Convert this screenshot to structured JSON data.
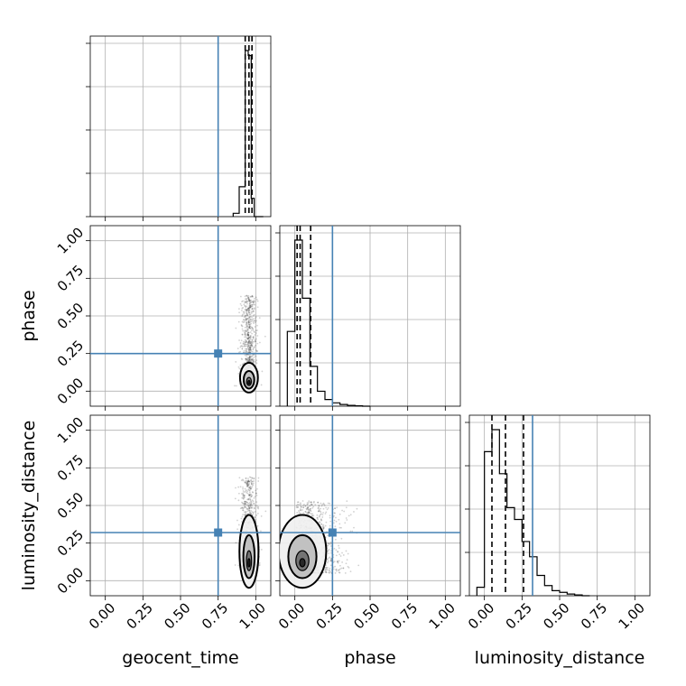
{
  "chart_data": {
    "type": "corner",
    "parameters": [
      "geocent_time",
      "phase",
      "luminosity_distance"
    ],
    "axis_range": [
      -0.1,
      1.1
    ],
    "ticks": [
      0.0,
      0.25,
      0.5,
      0.75,
      1.0
    ],
    "tick_labels": [
      "0.00",
      "0.25",
      "0.50",
      "0.75",
      "1.00"
    ],
    "grid": true,
    "truths": {
      "geocent_time": 0.75,
      "phase": 0.25,
      "luminosity_distance": 0.32
    },
    "truth_color": "#4682b4",
    "hist_color": "#000000",
    "marginals": {
      "geocent_time": {
        "bin_edges": [
          0.85,
          0.89,
          0.93,
          0.95,
          0.97,
          0.99,
          1.05
        ],
        "heights": [
          0.02,
          0.18,
          1.0,
          0.97,
          0.11,
          0.0
        ],
        "quantiles": [
          0.93,
          0.955,
          0.975
        ]
      },
      "phase": {
        "bin_edges": [
          -0.05,
          0.0,
          0.05,
          0.1,
          0.15,
          0.2,
          0.25,
          0.3,
          0.35,
          0.4,
          0.45,
          0.5
        ],
        "heights": [
          0.45,
          1.0,
          0.65,
          0.24,
          0.09,
          0.04,
          0.02,
          0.01,
          0.005,
          0.002,
          0.0
        ],
        "quantiles": [
          0.015,
          0.035,
          0.105
        ]
      },
      "luminosity_distance": {
        "bin_edges": [
          -0.05,
          0.0,
          0.05,
          0.1,
          0.15,
          0.2,
          0.25,
          0.3,
          0.35,
          0.4,
          0.45,
          0.5,
          0.55,
          0.6,
          0.65,
          0.7
        ],
        "heights": [
          0.05,
          0.85,
          0.98,
          0.72,
          0.52,
          0.45,
          0.32,
          0.23,
          0.12,
          0.06,
          0.03,
          0.02,
          0.01,
          0.005,
          0.0
        ],
        "quantiles": [
          0.05,
          0.14,
          0.26
        ]
      }
    },
    "joint": [
      {
        "x": "geocent_time",
        "y": "phase",
        "peak": [
          0.955,
          0.055
        ],
        "spread": [
          0.03,
          0.045
        ],
        "tail_max": 0.6
      },
      {
        "x": "geocent_time",
        "y": "luminosity_distance",
        "peak": [
          0.955,
          0.11
        ],
        "spread": [
          0.032,
          0.11
        ],
        "tail_max": 0.6
      },
      {
        "x": "phase",
        "y": "luminosity_distance",
        "peak": [
          0.05,
          0.11
        ],
        "spread": [
          0.08,
          0.11
        ],
        "tail_max": 0.6
      }
    ]
  }
}
